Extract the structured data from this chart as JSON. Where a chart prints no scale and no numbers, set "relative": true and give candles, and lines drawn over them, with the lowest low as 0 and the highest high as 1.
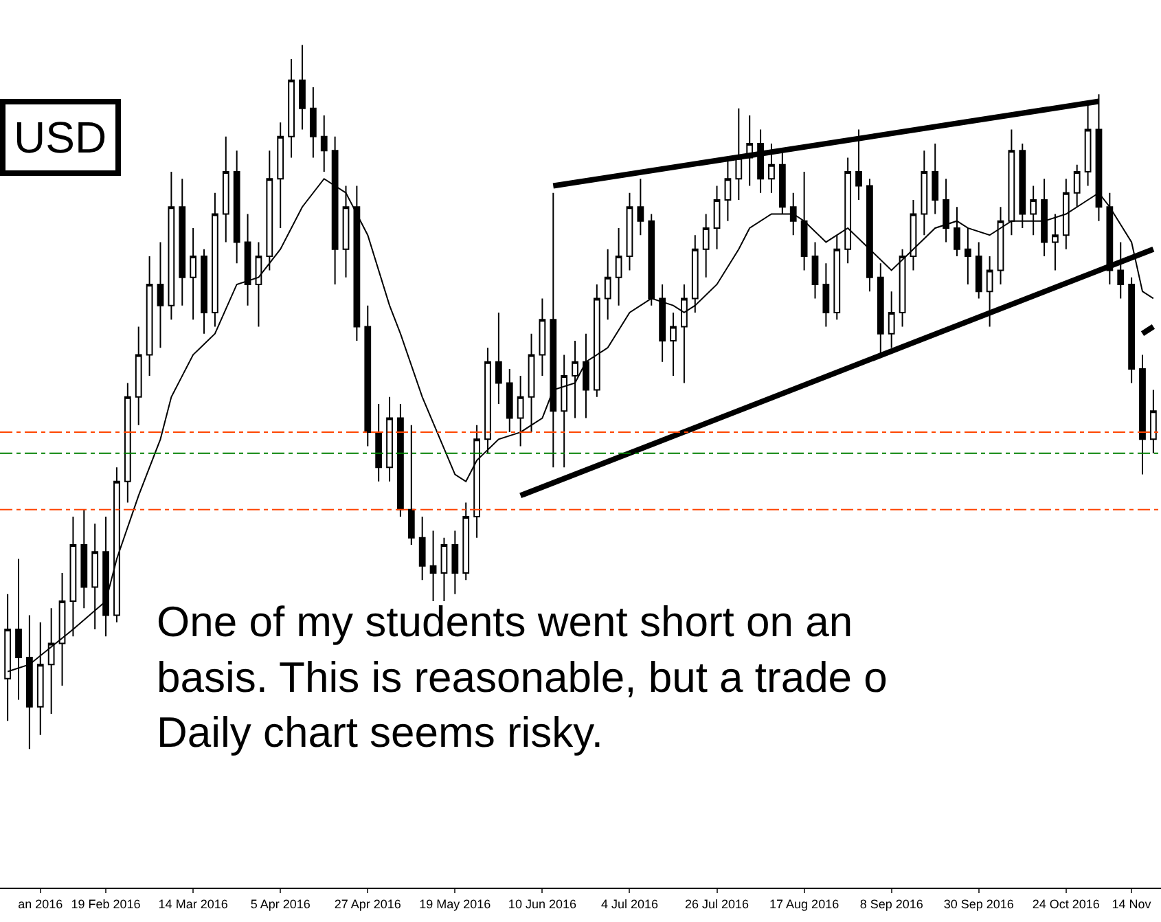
{
  "chart_data": {
    "type": "candlestick",
    "relative": true,
    "categories": [
      null,
      null,
      null,
      "an 2016",
      null,
      null,
      null,
      null,
      null,
      "19 Feb 2016",
      null,
      null,
      null,
      null,
      null,
      null,
      null,
      "14 Mar 2016",
      null,
      null,
      null,
      null,
      null,
      null,
      null,
      "5 Apr 2016",
      null,
      null,
      null,
      null,
      null,
      null,
      null,
      "27 Apr 2016",
      null,
      null,
      null,
      null,
      null,
      null,
      null,
      "19 May 2016",
      null,
      null,
      null,
      null,
      null,
      null,
      null,
      "10 Jun 2016",
      null,
      null,
      null,
      null,
      null,
      null,
      null,
      "4 Jul 2016",
      null,
      null,
      null,
      null,
      null,
      null,
      null,
      "26 Jul 2016",
      null,
      null,
      null,
      null,
      null,
      null,
      null,
      "17 Aug 2016",
      null,
      null,
      null,
      null,
      null,
      null,
      null,
      "8 Sep 2016",
      null,
      null,
      null,
      null,
      null,
      null,
      null,
      "30 Sep 2016",
      null,
      null,
      null,
      null,
      null,
      null,
      null,
      "24 Oct 2016",
      null,
      null,
      null,
      null,
      null,
      "14 Nov",
      null,
      null
    ],
    "ohlc": [
      [
        0.1,
        0.22,
        0.04,
        0.17
      ],
      [
        0.17,
        0.27,
        0.07,
        0.13
      ],
      [
        0.13,
        0.19,
        0.0,
        0.06
      ],
      [
        0.06,
        0.18,
        0.02,
        0.12
      ],
      [
        0.12,
        0.2,
        0.05,
        0.15
      ],
      [
        0.15,
        0.25,
        0.09,
        0.21
      ],
      [
        0.21,
        0.33,
        0.16,
        0.29
      ],
      [
        0.29,
        0.34,
        0.2,
        0.23
      ],
      [
        0.23,
        0.32,
        0.17,
        0.28
      ],
      [
        0.28,
        0.33,
        0.16,
        0.19
      ],
      [
        0.19,
        0.4,
        0.18,
        0.38
      ],
      [
        0.38,
        0.52,
        0.35,
        0.5
      ],
      [
        0.5,
        0.6,
        0.46,
        0.56
      ],
      [
        0.56,
        0.7,
        0.53,
        0.66
      ],
      [
        0.66,
        0.72,
        0.57,
        0.63
      ],
      [
        0.63,
        0.82,
        0.61,
        0.77
      ],
      [
        0.77,
        0.81,
        0.63,
        0.67
      ],
      [
        0.67,
        0.74,
        0.61,
        0.7
      ],
      [
        0.7,
        0.71,
        0.59,
        0.62
      ],
      [
        0.62,
        0.79,
        0.6,
        0.76
      ],
      [
        0.76,
        0.87,
        0.72,
        0.82
      ],
      [
        0.82,
        0.85,
        0.69,
        0.72
      ],
      [
        0.72,
        0.76,
        0.63,
        0.66
      ],
      [
        0.66,
        0.72,
        0.6,
        0.7
      ],
      [
        0.7,
        0.85,
        0.68,
        0.81
      ],
      [
        0.81,
        0.89,
        0.74,
        0.87
      ],
      [
        0.87,
        0.98,
        0.84,
        0.95
      ],
      [
        0.95,
        1.0,
        0.88,
        0.91
      ],
      [
        0.91,
        0.94,
        0.84,
        0.87
      ],
      [
        0.87,
        0.9,
        0.82,
        0.85
      ],
      [
        0.85,
        0.87,
        0.66,
        0.71
      ],
      [
        0.71,
        0.8,
        0.67,
        0.77
      ],
      [
        0.77,
        0.8,
        0.58,
        0.6
      ],
      [
        0.6,
        0.63,
        0.43,
        0.45
      ],
      [
        0.45,
        0.49,
        0.38,
        0.4
      ],
      [
        0.4,
        0.5,
        0.38,
        0.47
      ],
      [
        0.47,
        0.49,
        0.33,
        0.34
      ],
      [
        0.34,
        0.46,
        0.29,
        0.3
      ],
      [
        0.3,
        0.33,
        0.24,
        0.26
      ],
      [
        0.26,
        0.31,
        0.21,
        0.25
      ],
      [
        0.25,
        0.3,
        0.21,
        0.29
      ],
      [
        0.29,
        0.31,
        0.22,
        0.25
      ],
      [
        0.25,
        0.35,
        0.24,
        0.33
      ],
      [
        0.33,
        0.46,
        0.3,
        0.44
      ],
      [
        0.44,
        0.57,
        0.42,
        0.55
      ],
      [
        0.55,
        0.62,
        0.49,
        0.52
      ],
      [
        0.52,
        0.54,
        0.45,
        0.47
      ],
      [
        0.47,
        0.53,
        0.43,
        0.5
      ],
      [
        0.5,
        0.59,
        0.45,
        0.56
      ],
      [
        0.56,
        0.64,
        0.53,
        0.61
      ],
      [
        0.61,
        0.79,
        0.4,
        0.48
      ],
      [
        0.48,
        0.56,
        0.4,
        0.53
      ],
      [
        0.53,
        0.58,
        0.47,
        0.55
      ],
      [
        0.55,
        0.59,
        0.47,
        0.51
      ],
      [
        0.51,
        0.66,
        0.5,
        0.64
      ],
      [
        0.64,
        0.71,
        0.61,
        0.67
      ],
      [
        0.67,
        0.74,
        0.63,
        0.7
      ],
      [
        0.7,
        0.79,
        0.68,
        0.77
      ],
      [
        0.77,
        0.81,
        0.73,
        0.75
      ],
      [
        0.75,
        0.76,
        0.63,
        0.64
      ],
      [
        0.64,
        0.66,
        0.55,
        0.58
      ],
      [
        0.58,
        0.62,
        0.53,
        0.6
      ],
      [
        0.6,
        0.66,
        0.52,
        0.64
      ],
      [
        0.64,
        0.73,
        0.62,
        0.71
      ],
      [
        0.71,
        0.76,
        0.67,
        0.74
      ],
      [
        0.74,
        0.8,
        0.71,
        0.78
      ],
      [
        0.78,
        0.84,
        0.75,
        0.81
      ],
      [
        0.81,
        0.91,
        0.78,
        0.84
      ],
      [
        0.84,
        0.9,
        0.8,
        0.86
      ],
      [
        0.86,
        0.88,
        0.79,
        0.81
      ],
      [
        0.81,
        0.86,
        0.79,
        0.83
      ],
      [
        0.83,
        0.85,
        0.76,
        0.77
      ],
      [
        0.77,
        0.79,
        0.73,
        0.75
      ],
      [
        0.75,
        0.82,
        0.68,
        0.7
      ],
      [
        0.7,
        0.72,
        0.64,
        0.66
      ],
      [
        0.66,
        0.69,
        0.6,
        0.62
      ],
      [
        0.62,
        0.73,
        0.61,
        0.71
      ],
      [
        0.71,
        0.84,
        0.69,
        0.82
      ],
      [
        0.82,
        0.88,
        0.78,
        0.8
      ],
      [
        0.8,
        0.81,
        0.65,
        0.67
      ],
      [
        0.67,
        0.69,
        0.56,
        0.59
      ],
      [
        0.59,
        0.65,
        0.57,
        0.62
      ],
      [
        0.62,
        0.71,
        0.6,
        0.7
      ],
      [
        0.7,
        0.78,
        0.68,
        0.76
      ],
      [
        0.76,
        0.85,
        0.73,
        0.82
      ],
      [
        0.82,
        0.86,
        0.76,
        0.78
      ],
      [
        0.78,
        0.81,
        0.72,
        0.74
      ],
      [
        0.74,
        0.77,
        0.7,
        0.71
      ],
      [
        0.71,
        0.74,
        0.66,
        0.7
      ],
      [
        0.7,
        0.72,
        0.64,
        0.65
      ],
      [
        0.65,
        0.7,
        0.6,
        0.68
      ],
      [
        0.68,
        0.77,
        0.66,
        0.75
      ],
      [
        0.75,
        0.88,
        0.73,
        0.85
      ],
      [
        0.85,
        0.86,
        0.74,
        0.76
      ],
      [
        0.76,
        0.8,
        0.73,
        0.78
      ],
      [
        0.78,
        0.81,
        0.7,
        0.72
      ],
      [
        0.72,
        0.76,
        0.68,
        0.73
      ],
      [
        0.73,
        0.81,
        0.71,
        0.79
      ],
      [
        0.79,
        0.83,
        0.77,
        0.82
      ],
      [
        0.82,
        0.92,
        0.8,
        0.88
      ],
      [
        0.88,
        0.93,
        0.75,
        0.77
      ],
      [
        0.77,
        0.79,
        0.66,
        0.68
      ],
      [
        0.68,
        0.72,
        0.64,
        0.66
      ],
      [
        0.66,
        0.67,
        0.52,
        0.54
      ],
      [
        0.54,
        0.56,
        0.39,
        0.44
      ],
      [
        0.44,
        0.51,
        0.42,
        0.48
      ]
    ],
    "series": [
      {
        "type": "line",
        "color": "#000000",
        "values": [
          0.11,
          null,
          0.12,
          null,
          null,
          null,
          0.17,
          null,
          null,
          0.21,
          0.27,
          null,
          0.36,
          null,
          0.44,
          0.5,
          null,
          0.56,
          null,
          0.59,
          null,
          0.66,
          null,
          0.67,
          null,
          0.71,
          null,
          0.77,
          null,
          0.81,
          null,
          0.79,
          null,
          0.73,
          null,
          0.63,
          0.59,
          null,
          0.5,
          null,
          null,
          0.39,
          0.38,
          0.41,
          null,
          0.44,
          null,
          0.45,
          null,
          0.47,
          0.51,
          null,
          0.52,
          0.55,
          null,
          0.57,
          null,
          0.62,
          null,
          0.64,
          null,
          0.63,
          0.62,
          0.63,
          null,
          0.66,
          null,
          0.71,
          0.74,
          null,
          0.76,
          null,
          0.76,
          0.75,
          null,
          0.72,
          null,
          0.74,
          null,
          0.71,
          null,
          0.68,
          null,
          0.71,
          null,
          0.74,
          null,
          0.75,
          0.74,
          null,
          0.73,
          null,
          0.75,
          null,
          null,
          0.75,
          null,
          0.76,
          null,
          0.78,
          0.79,
          0.77,
          null,
          0.72,
          0.65,
          0.64
        ]
      },
      {
        "type": "line",
        "color": "#000000",
        "values": [
          null,
          null,
          null,
          null,
          null,
          null,
          null,
          null,
          null,
          null,
          null,
          null,
          null,
          null,
          null,
          null,
          null,
          null,
          null,
          null,
          null,
          null,
          null,
          null,
          null,
          null,
          null,
          null,
          null,
          null,
          null,
          null,
          null,
          null,
          null,
          null,
          null,
          null,
          null,
          null,
          null,
          null,
          null,
          null,
          null,
          null,
          null,
          null,
          null,
          null,
          0.8,
          null,
          null,
          null,
          null,
          null,
          null,
          null,
          null,
          null,
          null,
          null,
          null,
          null,
          null,
          null,
          null,
          null,
          null,
          null,
          null,
          null,
          null,
          null,
          null,
          null,
          null,
          null,
          null,
          null,
          null,
          null,
          null,
          null,
          null,
          null,
          null,
          null,
          null,
          null,
          null,
          null,
          null,
          null,
          null,
          null,
          null,
          null,
          null,
          null,
          0.92,
          null,
          null,
          null,
          null,
          null
        ]
      },
      {
        "type": "line",
        "color": "#000000",
        "values": [
          null,
          null,
          null,
          null,
          null,
          null,
          null,
          null,
          null,
          null,
          null,
          null,
          null,
          null,
          null,
          null,
          null,
          null,
          null,
          null,
          null,
          null,
          null,
          null,
          null,
          null,
          null,
          null,
          null,
          null,
          null,
          null,
          null,
          null,
          null,
          null,
          null,
          null,
          null,
          null,
          null,
          null,
          null,
          null,
          null,
          null,
          null,
          0.36,
          null,
          null,
          null,
          null,
          null,
          null,
          null,
          null,
          null,
          null,
          null,
          null,
          null,
          null,
          null,
          null,
          null,
          null,
          null,
          null,
          null,
          null,
          null,
          null,
          null,
          null,
          null,
          null,
          null,
          null,
          null,
          null,
          null,
          null,
          null,
          null,
          null,
          null,
          null,
          null,
          null,
          null,
          null,
          null,
          null,
          null,
          null,
          null,
          null,
          null,
          null,
          null,
          null,
          null,
          null,
          null,
          null,
          0.71
        ]
      },
      {
        "type": "line",
        "color": "#000000",
        "values": [
          null,
          null,
          null,
          null,
          null,
          null,
          null,
          null,
          null,
          null,
          null,
          null,
          null,
          null,
          null,
          null,
          null,
          null,
          null,
          null,
          null,
          null,
          null,
          null,
          null,
          null,
          null,
          null,
          null,
          null,
          null,
          null,
          null,
          null,
          null,
          null,
          null,
          null,
          null,
          null,
          null,
          null,
          null,
          null,
          null,
          null,
          null,
          null,
          null,
          null,
          null,
          null,
          null,
          null,
          null,
          null,
          null,
          null,
          null,
          null,
          null,
          null,
          null,
          null,
          null,
          null,
          null,
          null,
          null,
          null,
          null,
          null,
          null,
          null,
          null,
          null,
          null,
          null,
          null,
          null,
          null,
          null,
          null,
          null,
          null,
          null,
          null,
          null,
          null,
          null,
          null,
          null,
          null,
          null,
          null,
          null,
          null,
          null,
          null,
          null,
          null,
          null,
          null,
          null,
          0.59,
          0.6
        ]
      }
    ],
    "ref_lines": [
      {
        "axis": "y",
        "value": 0.45,
        "color": "#ff4500",
        "line_style": "dashdot"
      },
      {
        "axis": "y",
        "value": 0.42,
        "color": "#008000",
        "line_style": "dashdot"
      },
      {
        "axis": "y",
        "value": 0.34,
        "color": "#ff4500",
        "line_style": "dashdot"
      }
    ],
    "annotations": [
      "USD",
      "One of my students went short on an\nbasis. This is reasonable, but a trade o\nDaily chart seems risky."
    ]
  }
}
